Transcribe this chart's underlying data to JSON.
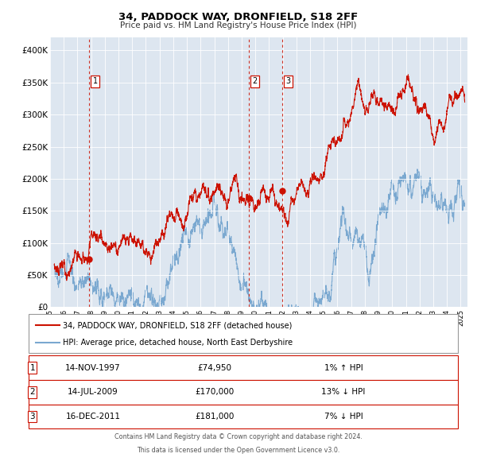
{
  "title": "34, PADDOCK WAY, DRONFIELD, S18 2FF",
  "subtitle": "Price paid vs. HM Land Registry's House Price Index (HPI)",
  "legend_line1": "34, PADDOCK WAY, DRONFIELD, S18 2FF (detached house)",
  "legend_line2": "HPI: Average price, detached house, North East Derbyshire",
  "footer1": "Contains HM Land Registry data © Crown copyright and database right 2024.",
  "footer2": "This data is licensed under the Open Government Licence v3.0.",
  "transactions": [
    {
      "label": "1",
      "date": "14-NOV-1997",
      "price": "74,950",
      "pct": "1%",
      "dir": "↑",
      "x_year": 1997.87,
      "y_val": 74950
    },
    {
      "label": "2",
      "date": "14-JUL-2009",
      "price": "170,000",
      "pct": "13%",
      "dir": "↓",
      "x_year": 2009.53,
      "y_val": 170000
    },
    {
      "label": "3",
      "date": "16-DEC-2011",
      "price": "181,000",
      "pct": "7%",
      "dir": "↓",
      "x_year": 2011.96,
      "y_val": 181000
    }
  ],
  "hpi_color": "#7aa8d0",
  "price_color": "#cc1100",
  "background_color": "#dde6f0",
  "grid_color": "#ffffff",
  "ylim": [
    0,
    420000
  ],
  "xlim_start": 1995.3,
  "xlim_end": 2025.5
}
